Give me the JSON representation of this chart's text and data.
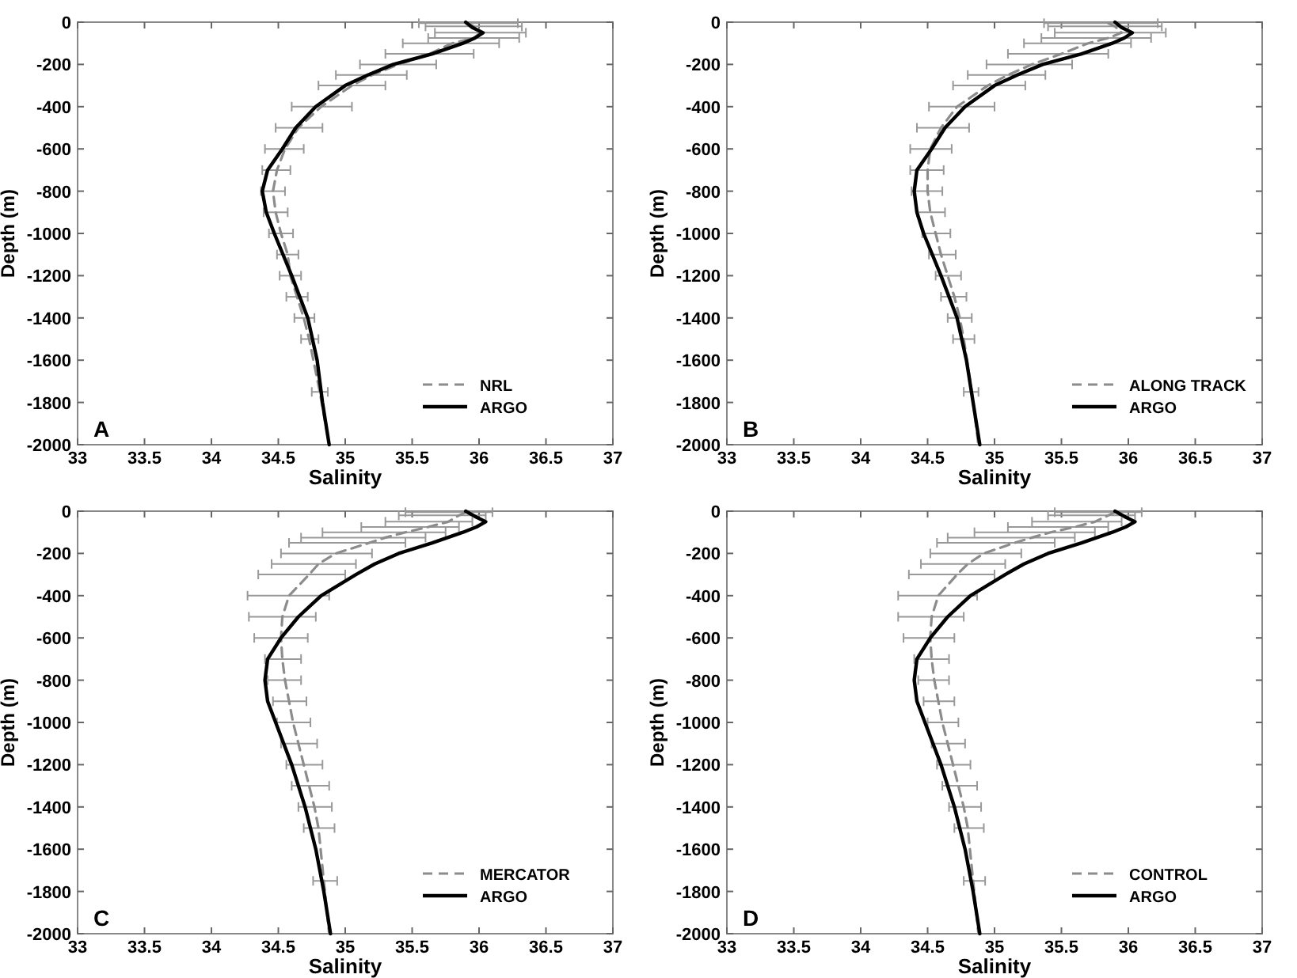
{
  "chart_data": [
    {
      "type": "line",
      "xlabel": "Salinity",
      "ylabel": "Depth (m)",
      "annotations": [
        "A"
      ],
      "xlim": [
        33,
        37
      ],
      "ylim": [
        -2000,
        0
      ],
      "xticks": [
        33,
        33.5,
        34,
        34.5,
        35,
        35.5,
        36,
        36.5,
        37
      ],
      "yticks": [
        -2000,
        -1800,
        -1600,
        -1400,
        -1200,
        -1000,
        -800,
        -600,
        -400,
        -200,
        0
      ],
      "legend": "bottom right",
      "series": [
        {
          "name": "NRL",
          "color": "#8c8c8c",
          "line_style": "dashed",
          "x": [
            35.9,
            35.96,
            36.01,
            35.96,
            35.8,
            35.63,
            35.4,
            35.2,
            35.05,
            34.82,
            34.65,
            34.55,
            34.49,
            34.46,
            34.48,
            34.52,
            34.57,
            34.59,
            34.64,
            34.69,
            34.73,
            34.81,
            34.88
          ],
          "values": [
            -5,
            -20,
            -50,
            -75,
            -100,
            -150,
            -200,
            -250,
            -300,
            -400,
            -500,
            -600,
            -700,
            -800,
            -900,
            -1000,
            -1100,
            -1200,
            -1300,
            -1400,
            -1500,
            -1750,
            -2000
          ],
          "xerrors": [
            [
              35.55,
              36.29
            ],
            [
              35.6,
              36.32
            ],
            [
              35.67,
              36.35
            ],
            [
              35.62,
              36.3
            ],
            [
              35.43,
              36.15
            ],
            [
              35.3,
              35.96
            ],
            [
              35.11,
              35.68
            ],
            [
              34.93,
              35.46
            ],
            [
              34.8,
              35.3
            ],
            [
              34.6,
              35.05
            ],
            [
              34.48,
              34.83
            ],
            [
              34.4,
              34.69
            ],
            [
              34.38,
              34.59
            ],
            [
              34.37,
              34.55
            ],
            [
              34.39,
              34.57
            ],
            [
              34.43,
              34.61
            ],
            [
              34.49,
              34.65
            ],
            [
              34.51,
              34.67
            ],
            [
              34.56,
              34.72
            ],
            [
              34.62,
              34.77
            ],
            [
              34.67,
              34.8
            ],
            [
              34.75,
              34.87
            ],
            null
          ]
        },
        {
          "name": "ARGO",
          "color": "#000000",
          "line_style": "solid",
          "x": [
            35.9,
            35.95,
            36.03,
            35.97,
            35.88,
            35.65,
            35.36,
            35.17,
            35.0,
            34.78,
            34.63,
            34.53,
            34.42,
            34.38,
            34.41,
            34.47,
            34.6,
            34.72,
            34.79,
            34.83,
            34.88
          ],
          "values": [
            0,
            -25,
            -50,
            -75,
            -100,
            -150,
            -200,
            -250,
            -300,
            -400,
            -500,
            -600,
            -700,
            -800,
            -900,
            -1000,
            -1200,
            -1400,
            -1600,
            -1800,
            -2000
          ]
        }
      ]
    },
    {
      "type": "line",
      "xlabel": "Salinity",
      "ylabel": "Depth (m)",
      "annotations": [
        "B"
      ],
      "xlim": [
        33,
        37
      ],
      "ylim": [
        -2000,
        0
      ],
      "xticks": [
        33,
        33.5,
        34,
        34.5,
        35,
        35.5,
        36,
        36.5,
        37
      ],
      "yticks": [
        -2000,
        -1800,
        -1600,
        -1400,
        -1200,
        -1000,
        -800,
        -600,
        -400,
        -200,
        0
      ],
      "legend": "bottom right",
      "series": [
        {
          "name": "ALONG TRACK",
          "color": "#8c8c8c",
          "line_style": "dashed",
          "x": [
            35.85,
            35.9,
            35.95,
            35.85,
            35.7,
            35.5,
            35.28,
            35.1,
            34.95,
            34.72,
            34.6,
            34.52,
            34.5,
            34.5,
            34.52,
            34.56,
            34.6,
            34.65,
            34.7,
            34.74,
            34.77,
            34.83,
            34.88
          ],
          "values": [
            -5,
            -20,
            -50,
            -75,
            -100,
            -150,
            -200,
            -250,
            -300,
            -400,
            -500,
            -600,
            -700,
            -800,
            -900,
            -1000,
            -1100,
            -1200,
            -1300,
            -1400,
            -1500,
            -1750,
            -2000
          ],
          "xerrors": [
            [
              35.37,
              36.22
            ],
            [
              35.4,
              36.25
            ],
            [
              35.45,
              36.28
            ],
            [
              35.35,
              36.17
            ],
            [
              35.22,
              36.02
            ],
            [
              35.1,
              35.85
            ],
            [
              34.94,
              35.58
            ],
            [
              34.8,
              35.38
            ],
            [
              34.69,
              35.23
            ],
            [
              34.51,
              35.0
            ],
            [
              34.42,
              34.81
            ],
            [
              34.37,
              34.68
            ],
            [
              34.37,
              34.62
            ],
            [
              34.38,
              34.61
            ],
            [
              34.42,
              34.63
            ],
            [
              34.46,
              34.67
            ],
            [
              34.51,
              34.71
            ],
            [
              34.56,
              34.75
            ],
            [
              34.6,
              34.79
            ],
            [
              34.65,
              34.83
            ],
            [
              34.69,
              34.85
            ],
            [
              34.77,
              34.88
            ],
            null
          ]
        },
        {
          "name": "ARGO",
          "color": "#000000",
          "line_style": "solid",
          "x": [
            35.9,
            35.95,
            36.03,
            35.97,
            35.88,
            35.65,
            35.36,
            35.17,
            35.0,
            34.78,
            34.63,
            34.53,
            34.42,
            34.4,
            34.42,
            34.47,
            34.6,
            34.72,
            34.79,
            34.84,
            34.89
          ],
          "values": [
            0,
            -25,
            -50,
            -75,
            -100,
            -150,
            -200,
            -250,
            -300,
            -400,
            -500,
            -600,
            -700,
            -800,
            -900,
            -1000,
            -1200,
            -1400,
            -1600,
            -1800,
            -2000
          ]
        }
      ]
    },
    {
      "type": "line",
      "xlabel": "Salinity",
      "ylabel": "Depth (m)",
      "annotations": [
        "C"
      ],
      "xlim": [
        33,
        37
      ],
      "ylim": [
        -2000,
        0
      ],
      "xticks": [
        33,
        33.5,
        34,
        34.5,
        35,
        35.5,
        36,
        36.5,
        37
      ],
      "yticks": [
        -2000,
        -1800,
        -1600,
        -1400,
        -1200,
        -1000,
        -800,
        -600,
        -400,
        -200,
        0
      ],
      "legend": "bottom right",
      "series": [
        {
          "name": "MERCATOR",
          "color": "#8c8c8c",
          "line_style": "dashed",
          "x": [
            35.9,
            35.85,
            35.77,
            35.62,
            35.45,
            35.3,
            35.18,
            34.93,
            34.8,
            34.73,
            34.58,
            34.53,
            34.52,
            34.53,
            34.55,
            34.58,
            34.61,
            34.65,
            34.69,
            34.73,
            34.77,
            34.8,
            34.84,
            34.88
          ],
          "values": [
            -5,
            -20,
            -50,
            -75,
            -100,
            -125,
            -150,
            -200,
            -250,
            -300,
            -400,
            -500,
            -600,
            -700,
            -800,
            -900,
            -1000,
            -1100,
            -1200,
            -1300,
            -1400,
            -1500,
            -1750,
            -2000
          ],
          "xerrors": [
            [
              35.45,
              36.1
            ],
            [
              35.4,
              36.05
            ],
            [
              35.3,
              35.95
            ],
            [
              35.12,
              35.85
            ],
            [
              34.83,
              35.75
            ],
            [
              34.67,
              35.6
            ],
            [
              34.58,
              35.45
            ],
            [
              34.52,
              35.2
            ],
            [
              34.45,
              35.08
            ],
            [
              34.35,
              35.0
            ],
            [
              34.27,
              34.88
            ],
            [
              34.28,
              34.78
            ],
            [
              34.32,
              34.72
            ],
            [
              34.4,
              34.67
            ],
            [
              34.42,
              34.67
            ],
            [
              34.46,
              34.71
            ],
            [
              34.49,
              34.74
            ],
            [
              34.52,
              34.79
            ],
            [
              34.56,
              34.83
            ],
            [
              34.6,
              34.88
            ],
            [
              34.65,
              34.9
            ],
            [
              34.69,
              34.92
            ],
            [
              34.76,
              34.94
            ],
            null
          ]
        },
        {
          "name": "ARGO",
          "color": "#000000",
          "line_style": "solid",
          "x": [
            35.9,
            35.97,
            36.05,
            35.98,
            35.88,
            35.65,
            35.4,
            35.22,
            35.08,
            34.82,
            34.65,
            34.52,
            34.42,
            34.4,
            34.42,
            34.48,
            34.6,
            34.7,
            34.78,
            34.84,
            34.89
          ],
          "values": [
            0,
            -25,
            -50,
            -75,
            -100,
            -150,
            -200,
            -250,
            -300,
            -400,
            -500,
            -600,
            -700,
            -800,
            -900,
            -1000,
            -1200,
            -1400,
            -1600,
            -1800,
            -2000
          ]
        }
      ]
    },
    {
      "type": "line",
      "xlabel": "Salinity",
      "ylabel": "Depth (m)",
      "annotations": [
        "D"
      ],
      "xlim": [
        33,
        37
      ],
      "ylim": [
        -2000,
        0
      ],
      "xticks": [
        33,
        33.5,
        34,
        34.5,
        35,
        35.5,
        36,
        36.5,
        37
      ],
      "yticks": [
        -2000,
        -1800,
        -1600,
        -1400,
        -1200,
        -1000,
        -800,
        -600,
        -400,
        -200,
        0
      ],
      "legend": "bottom right",
      "series": [
        {
          "name": "CONTROL",
          "color": "#8c8c8c",
          "line_style": "dashed",
          "x": [
            35.9,
            35.85,
            35.75,
            35.6,
            35.42,
            35.28,
            35.15,
            34.92,
            34.8,
            34.72,
            34.58,
            34.53,
            34.52,
            34.53,
            34.55,
            34.58,
            34.61,
            34.65,
            34.69,
            34.73,
            34.77,
            34.8,
            34.84,
            34.88
          ],
          "values": [
            -5,
            -20,
            -50,
            -75,
            -100,
            -125,
            -150,
            -200,
            -250,
            -300,
            -400,
            -500,
            -600,
            -700,
            -800,
            -900,
            -1000,
            -1100,
            -1200,
            -1300,
            -1400,
            -1500,
            -1750,
            -2000
          ],
          "xerrors": [
            [
              35.45,
              36.1
            ],
            [
              35.4,
              36.05
            ],
            [
              35.28,
              35.95
            ],
            [
              35.1,
              35.85
            ],
            [
              34.85,
              35.75
            ],
            [
              34.65,
              35.6
            ],
            [
              34.57,
              35.45
            ],
            [
              34.52,
              35.2
            ],
            [
              34.45,
              35.08
            ],
            [
              34.36,
              35.0
            ],
            [
              34.28,
              34.87
            ],
            [
              34.28,
              34.77
            ],
            [
              34.32,
              34.7
            ],
            [
              34.4,
              34.66
            ],
            [
              34.43,
              34.66
            ],
            [
              34.47,
              34.7
            ],
            [
              34.5,
              34.73
            ],
            [
              34.53,
              34.78
            ],
            [
              34.57,
              34.82
            ],
            [
              34.61,
              34.87
            ],
            [
              34.66,
              34.9
            ],
            [
              34.7,
              34.92
            ],
            [
              34.77,
              34.93
            ],
            null
          ]
        },
        {
          "name": "ARGO",
          "color": "#000000",
          "line_style": "solid",
          "x": [
            35.9,
            35.97,
            36.05,
            35.98,
            35.88,
            35.65,
            35.4,
            35.22,
            35.08,
            34.82,
            34.65,
            34.52,
            34.42,
            34.4,
            34.42,
            34.48,
            34.6,
            34.7,
            34.78,
            34.84,
            34.89
          ],
          "values": [
            0,
            -25,
            -50,
            -75,
            -100,
            -150,
            -200,
            -250,
            -300,
            -400,
            -500,
            -600,
            -700,
            -800,
            -900,
            -1000,
            -1200,
            -1400,
            -1600,
            -1800,
            -2000
          ]
        }
      ]
    }
  ]
}
